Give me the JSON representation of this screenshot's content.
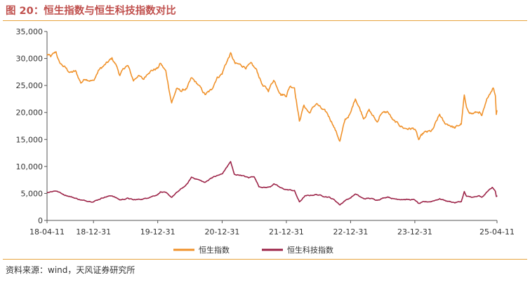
{
  "figure": {
    "title": "图 20：恒生指数与恒生科技指数对比",
    "source": "资料来源：wind，天风证券研究所"
  },
  "colors": {
    "hsi": "#f0922b",
    "hstech": "#9c2448",
    "rule": "#e8a33d",
    "title": "#c0504d"
  },
  "chart_data": {
    "type": "line",
    "title": "",
    "xlabel": "",
    "ylabel": "",
    "ylim": [
      0,
      35000
    ],
    "y_ticks": [
      "0",
      "5,000",
      "10,000",
      "15,000",
      "20,000",
      "25,000",
      "30,000",
      "35,000"
    ],
    "x_ticks": [
      "18-04-11",
      "18-12-31",
      "19-12-31",
      "20-12-31",
      "21-12-31",
      "22-12-31",
      "23-12-31",
      "25-04-11"
    ],
    "x_tick_dates": [
      "2018-04-11",
      "2018-12-31",
      "2019-12-31",
      "2020-12-31",
      "2021-12-31",
      "2022-12-31",
      "2023-12-31",
      "2025-04-11"
    ],
    "legend_position": "bottom-center",
    "grid": false,
    "series": [
      {
        "name": "恒生指数",
        "color": "#f0922b",
        "points": [
          [
            "2018-04-11",
            30800
          ],
          [
            "2018-05-02",
            30300
          ],
          [
            "2018-06-01",
            31200
          ],
          [
            "2018-06-20",
            29200
          ],
          [
            "2018-07-20",
            28400
          ],
          [
            "2018-08-20",
            27400
          ],
          [
            "2018-09-20",
            27600
          ],
          [
            "2018-10-20",
            25500
          ],
          [
            "2018-11-15",
            26300
          ],
          [
            "2018-12-31",
            25800
          ],
          [
            "2019-01-31",
            27900
          ],
          [
            "2019-02-28",
            28600
          ],
          [
            "2019-04-15",
            30000
          ],
          [
            "2019-05-10",
            28700
          ],
          [
            "2019-05-30",
            26900
          ],
          [
            "2019-06-30",
            28500
          ],
          [
            "2019-07-15",
            28600
          ],
          [
            "2019-08-15",
            25900
          ],
          [
            "2019-09-10",
            26900
          ],
          [
            "2019-10-10",
            26100
          ],
          [
            "2019-11-10",
            27600
          ],
          [
            "2019-12-31",
            28200
          ],
          [
            "2020-01-15",
            29100
          ],
          [
            "2020-02-15",
            27600
          ],
          [
            "2020-03-19",
            21800
          ],
          [
            "2020-04-15",
            24300
          ],
          [
            "2020-05-15",
            24000
          ],
          [
            "2020-06-15",
            24500
          ],
          [
            "2020-07-10",
            26300
          ],
          [
            "2020-08-15",
            25200
          ],
          [
            "2020-09-25",
            23300
          ],
          [
            "2020-10-30",
            24100
          ],
          [
            "2020-11-30",
            26400
          ],
          [
            "2020-12-31",
            27200
          ],
          [
            "2021-01-15",
            28600
          ],
          [
            "2021-02-17",
            30900
          ],
          [
            "2021-03-15",
            29000
          ],
          [
            "2021-04-15",
            28800
          ],
          [
            "2021-05-15",
            28400
          ],
          [
            "2021-06-15",
            28900
          ],
          [
            "2021-07-15",
            27800
          ],
          [
            "2021-08-20",
            24900
          ],
          [
            "2021-09-20",
            24100
          ],
          [
            "2021-10-20",
            26100
          ],
          [
            "2021-11-30",
            23400
          ],
          [
            "2021-12-31",
            23200
          ],
          [
            "2022-01-20",
            24900
          ],
          [
            "2022-02-15",
            24700
          ],
          [
            "2022-03-15",
            18400
          ],
          [
            "2022-04-10",
            21300
          ],
          [
            "2022-05-10",
            19900
          ],
          [
            "2022-06-20",
            21700
          ],
          [
            "2022-07-20",
            20600
          ],
          [
            "2022-08-20",
            19800
          ],
          [
            "2022-09-20",
            18000
          ],
          [
            "2022-10-31",
            14700
          ],
          [
            "2022-11-30",
            18600
          ],
          [
            "2022-12-31",
            19800
          ],
          [
            "2023-01-27",
            22700
          ],
          [
            "2023-03-15",
            19000
          ],
          [
            "2023-04-15",
            20400
          ],
          [
            "2023-05-31",
            18200
          ],
          [
            "2023-06-20",
            19800
          ],
          [
            "2023-07-31",
            20100
          ],
          [
            "2023-08-31",
            18400
          ],
          [
            "2023-09-30",
            17800
          ],
          [
            "2023-10-31",
            17100
          ],
          [
            "2023-11-30",
            17000
          ],
          [
            "2023-12-31",
            17000
          ],
          [
            "2024-01-22",
            14900
          ],
          [
            "2024-02-20",
            16200
          ],
          [
            "2024-03-31",
            16500
          ],
          [
            "2024-04-10",
            16700
          ],
          [
            "2024-05-20",
            19600
          ],
          [
            "2024-06-15",
            18000
          ],
          [
            "2024-07-15",
            17700
          ],
          [
            "2024-08-15",
            17100
          ],
          [
            "2024-09-20",
            17900
          ],
          [
            "2024-10-07",
            23100
          ],
          [
            "2024-10-20",
            20600
          ],
          [
            "2024-11-20",
            19800
          ],
          [
            "2024-12-31",
            20100
          ],
          [
            "2025-01-15",
            19200
          ],
          [
            "2025-02-20",
            23000
          ],
          [
            "2025-03-20",
            24700
          ],
          [
            "2025-04-02",
            23200
          ],
          [
            "2025-04-07",
            19800
          ],
          [
            "2025-04-11",
            20400
          ]
        ]
      },
      {
        "name": "恒生科技指数",
        "color": "#9c2448",
        "points": [
          [
            "2018-04-11",
            5200
          ],
          [
            "2018-06-01",
            5500
          ],
          [
            "2018-07-15",
            4800
          ],
          [
            "2018-09-01",
            4300
          ],
          [
            "2018-10-30",
            3700
          ],
          [
            "2018-12-31",
            3500
          ],
          [
            "2019-02-28",
            4300
          ],
          [
            "2019-04-15",
            4600
          ],
          [
            "2019-05-31",
            3800
          ],
          [
            "2019-07-15",
            4100
          ],
          [
            "2019-08-15",
            3800
          ],
          [
            "2019-10-15",
            4000
          ],
          [
            "2019-12-31",
            4800
          ],
          [
            "2020-01-15",
            5300
          ],
          [
            "2020-02-15",
            5100
          ],
          [
            "2020-03-19",
            4300
          ],
          [
            "2020-04-30",
            5500
          ],
          [
            "2020-06-15",
            6700
          ],
          [
            "2020-07-10",
            8000
          ],
          [
            "2020-08-15",
            7600
          ],
          [
            "2020-09-25",
            7000
          ],
          [
            "2020-10-30",
            7900
          ],
          [
            "2020-12-31",
            8600
          ],
          [
            "2021-02-17",
            10900
          ],
          [
            "2021-03-10",
            8500
          ],
          [
            "2021-04-15",
            8400
          ],
          [
            "2021-05-31",
            7900
          ],
          [
            "2021-06-30",
            8200
          ],
          [
            "2021-07-28",
            6300
          ],
          [
            "2021-08-31",
            6100
          ],
          [
            "2021-09-30",
            6200
          ],
          [
            "2021-10-20",
            6800
          ],
          [
            "2021-11-30",
            6000
          ],
          [
            "2021-12-31",
            5700
          ],
          [
            "2022-01-31",
            5600
          ],
          [
            "2022-02-15",
            5500
          ],
          [
            "2022-03-15",
            3400
          ],
          [
            "2022-04-15",
            4500
          ],
          [
            "2022-06-20",
            4800
          ],
          [
            "2022-07-31",
            4500
          ],
          [
            "2022-08-31",
            4300
          ],
          [
            "2022-09-30",
            3800
          ],
          [
            "2022-10-31",
            2900
          ],
          [
            "2022-11-30",
            3700
          ],
          [
            "2022-12-31",
            4200
          ],
          [
            "2023-01-27",
            4900
          ],
          [
            "2023-03-15",
            4000
          ],
          [
            "2023-04-15",
            4100
          ],
          [
            "2023-05-31",
            3800
          ],
          [
            "2023-07-31",
            4400
          ],
          [
            "2023-08-31",
            4000
          ],
          [
            "2023-10-31",
            3900
          ],
          [
            "2023-12-31",
            3800
          ],
          [
            "2024-01-22",
            3100
          ],
          [
            "2024-02-20",
            3400
          ],
          [
            "2024-03-31",
            3500
          ],
          [
            "2024-05-20",
            4000
          ],
          [
            "2024-06-30",
            3600
          ],
          [
            "2024-08-15",
            3300
          ],
          [
            "2024-09-20",
            3500
          ],
          [
            "2024-10-07",
            5300
          ],
          [
            "2024-10-20",
            4400
          ],
          [
            "2024-11-30",
            4300
          ],
          [
            "2024-12-31",
            4500
          ],
          [
            "2025-01-15",
            4200
          ],
          [
            "2025-02-20",
            5500
          ],
          [
            "2025-03-15",
            6100
          ],
          [
            "2025-04-02",
            5400
          ],
          [
            "2025-04-07",
            4500
          ],
          [
            "2025-04-11",
            4600
          ]
        ]
      }
    ]
  }
}
